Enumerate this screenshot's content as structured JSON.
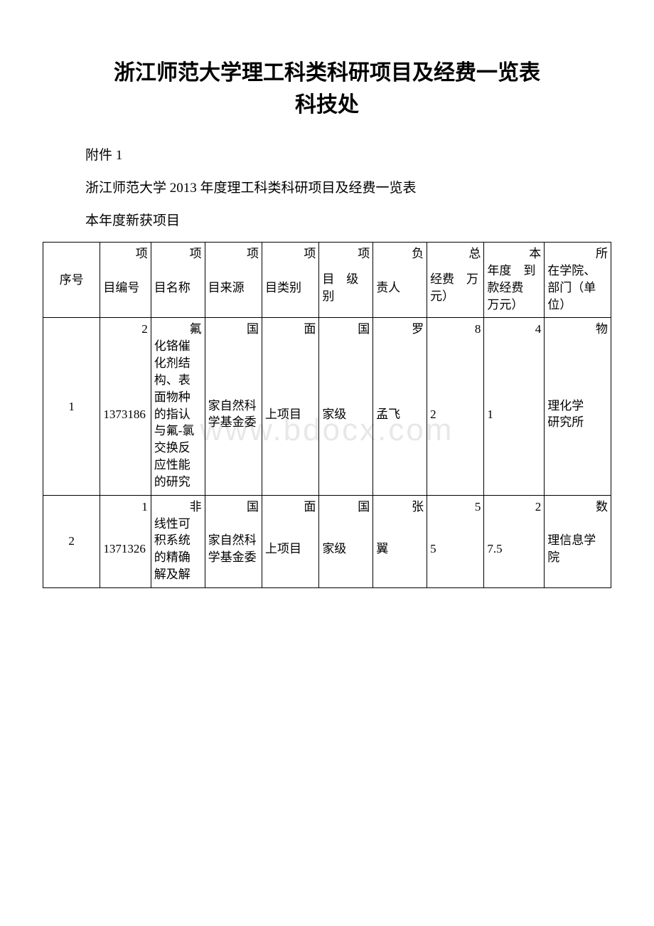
{
  "title_line1": "浙江师范大学理工科类科研项目及经费一览表",
  "title_line2": "科技处",
  "attachment_label": "附件 1",
  "subtitle": "浙江师范大学 2013 年度理工科类科研项目及经费一览表",
  "section_label": "本年度新获项目",
  "watermark_text": "www.bdocx.com",
  "headers": {
    "seq": "序号",
    "id_prefix": "项",
    "id_main": "目编号",
    "name_prefix": "项",
    "name_main": "目名称",
    "source_prefix": "项",
    "source_main": "目来源",
    "cat_prefix": "项",
    "cat_main": "目类别",
    "level_prefix": "项",
    "level_main": "目　级别",
    "person_prefix": "负",
    "person_main": "责人",
    "total_prefix": "总",
    "total_main": "经费　万元）",
    "year_prefix": "本",
    "year_main": "年度　到款经费　万元）",
    "dept_prefix": "所",
    "dept_main": "在学院、　部门（单位）"
  },
  "rows": [
    {
      "seq": "1",
      "id_prefix": "2",
      "id_main": "1373186",
      "name_prefix": "氟",
      "name_main": "化铬催化剂结构、表面物种的指认与氟-氯交换反应性能的研究",
      "source_prefix": "国",
      "source_main": "家自然科学基金委",
      "cat_prefix": "面",
      "cat_main": "上项目",
      "level_prefix": "国",
      "level_main": "家级",
      "person_prefix": "罗",
      "person_main": "孟飞",
      "total_prefix": "8",
      "total_main": "2",
      "year_prefix": "4",
      "year_main": "1",
      "dept_prefix": "物",
      "dept_main": "理化学　研究所"
    },
    {
      "seq": "2",
      "id_prefix": "1",
      "id_main": "1371326",
      "name_prefix": "非",
      "name_main": "线性可积系统的精确解及解",
      "source_prefix": "国",
      "source_main": "家自然科学基金委",
      "cat_prefix": "面",
      "cat_main": "上项目",
      "level_prefix": "国",
      "level_main": "家级",
      "person_prefix": "张",
      "person_main": "翼",
      "total_prefix": "5",
      "total_main": "5",
      "year_prefix": "2",
      "year_main": "7.5",
      "dept_prefix": "数",
      "dept_main": "理信息学院"
    }
  ],
  "colors": {
    "background": "#ffffff",
    "text": "#000000",
    "border": "#000000",
    "watermark": "#e8e8e8"
  },
  "fonts": {
    "body_family": "SimSun",
    "title_size": 30,
    "intro_size": 19,
    "cell_size": 17
  }
}
